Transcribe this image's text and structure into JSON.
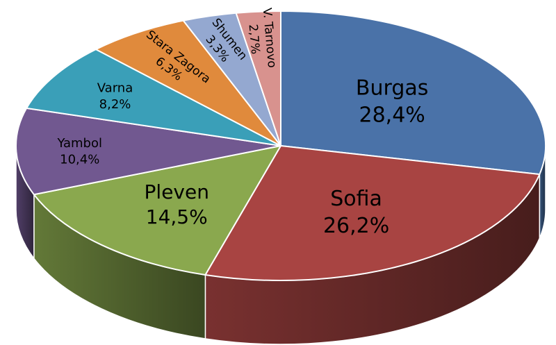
{
  "chart_data": {
    "type": "pie",
    "style": "3d",
    "title": "",
    "slices": [
      {
        "label": "Burgas",
        "value": 28.4,
        "display": "28,4%",
        "color": "#4a72a8"
      },
      {
        "label": "Sofia",
        "value": 26.2,
        "display": "26,2%",
        "color": "#a84442"
      },
      {
        "label": "Pleven",
        "value": 14.5,
        "display": "14,5%",
        "color": "#8aa84e"
      },
      {
        "label": "Yambol",
        "value": 10.4,
        "display": "10,4%",
        "color": "#715890"
      },
      {
        "label": "Varna",
        "value": 8.2,
        "display": "8,2%",
        "color": "#3a9fb8"
      },
      {
        "label": "Stara Zagora",
        "value": 6.3,
        "display": "6,3%",
        "color": "#e08a3c"
      },
      {
        "label": "Shumen",
        "value": 3.3,
        "display": "3,3%",
        "color": "#94a8d0"
      },
      {
        "label": "V. Tarnovo",
        "value": 2.7,
        "display": "2,7%",
        "color": "#d8928e"
      }
    ]
  }
}
